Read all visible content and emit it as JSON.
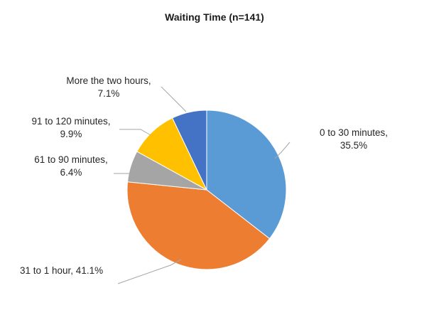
{
  "chart_data": {
    "type": "pie",
    "title": "Waiting Time (n=141)",
    "slices": [
      {
        "label": "0 to 30 minutes",
        "value": 35.5,
        "display": "35.5%",
        "color": "#5B9BD5"
      },
      {
        "label": "31 to 1 hour",
        "value": 41.1,
        "display": "41.1%",
        "color": "#ED7D31"
      },
      {
        "label": "61 to 90 minutes",
        "value": 6.4,
        "display": "6.4%",
        "color": "#A5A5A5"
      },
      {
        "label": "91 to 120 minutes",
        "value": 9.9,
        "display": "9.9%",
        "color": "#FFC000"
      },
      {
        "label": "More the two hours",
        "value": 7.1,
        "display": "7.1%",
        "color": "#4472C4"
      }
    ],
    "label_text": [
      [
        "0 to 30 minutes,",
        "35.5%"
      ],
      [
        "31 to 1 hour, 41.1%"
      ],
      [
        "61 to 90 minutes,",
        "6.4%"
      ],
      [
        "91 to 120 minutes,",
        "9.9%"
      ],
      [
        "More the two hours,",
        "7.1%"
      ]
    ],
    "legend": "none",
    "start_angle_deg": 0,
    "direction": "clockwise"
  }
}
